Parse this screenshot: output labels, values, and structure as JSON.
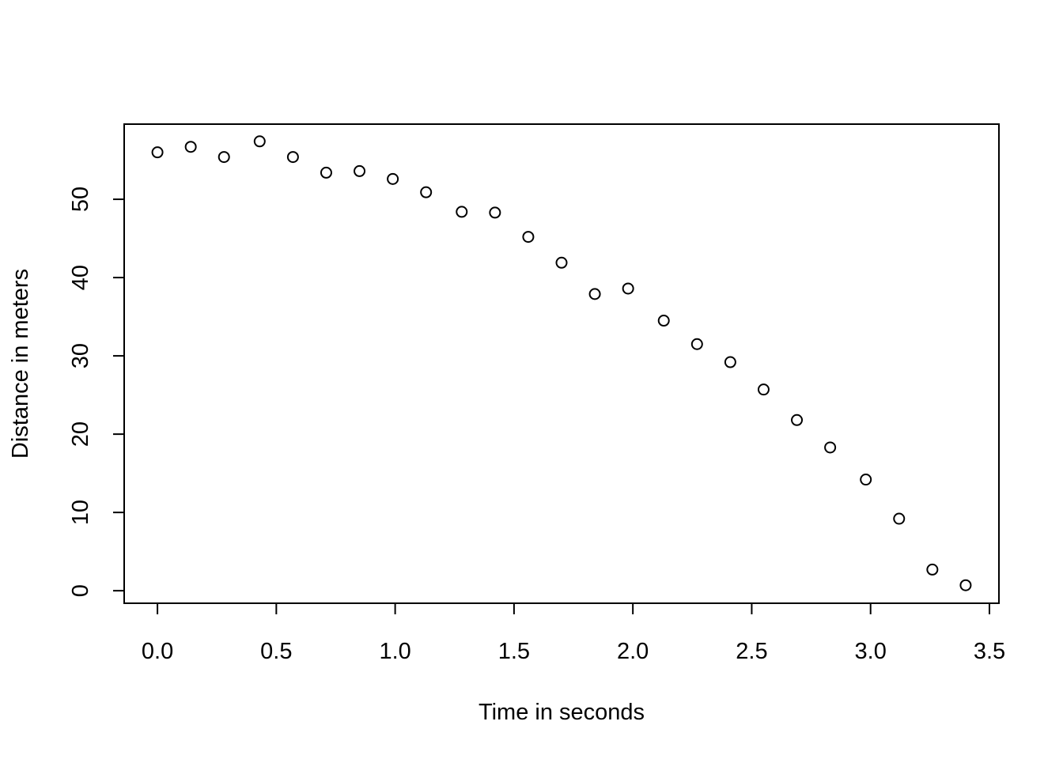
{
  "chart_data": {
    "type": "scatter",
    "xlabel": "Time in seconds",
    "ylabel": "Distance in meters",
    "xlim": [
      -0.14,
      3.54
    ],
    "ylim": [
      -1.6,
      59.6
    ],
    "xticks": [
      0.0,
      0.5,
      1.0,
      1.5,
      2.0,
      2.5,
      3.0,
      3.5
    ],
    "xtick_labels": [
      "0.0",
      "0.5",
      "1.0",
      "1.5",
      "2.0",
      "2.5",
      "3.0",
      "3.5"
    ],
    "yticks": [
      0,
      10,
      20,
      30,
      40,
      50
    ],
    "ytick_labels": [
      "0",
      "10",
      "20",
      "30",
      "40",
      "50"
    ],
    "grid": false,
    "marker": "open-circle",
    "marker_color": "#000000",
    "x": [
      0.0,
      0.14,
      0.28,
      0.43,
      0.57,
      0.71,
      0.85,
      0.99,
      1.13,
      1.28,
      1.42,
      1.56,
      1.7,
      1.84,
      1.98,
      2.13,
      2.27,
      2.41,
      2.55,
      2.69,
      2.83,
      2.98,
      3.12,
      3.26,
      3.4
    ],
    "y": [
      56.0,
      56.7,
      55.4,
      57.4,
      55.4,
      53.4,
      53.6,
      52.6,
      50.9,
      48.4,
      48.3,
      45.2,
      41.9,
      37.9,
      38.6,
      34.5,
      31.5,
      29.2,
      25.7,
      21.8,
      18.3,
      14.2,
      9.2,
      2.7,
      0.7
    ]
  }
}
